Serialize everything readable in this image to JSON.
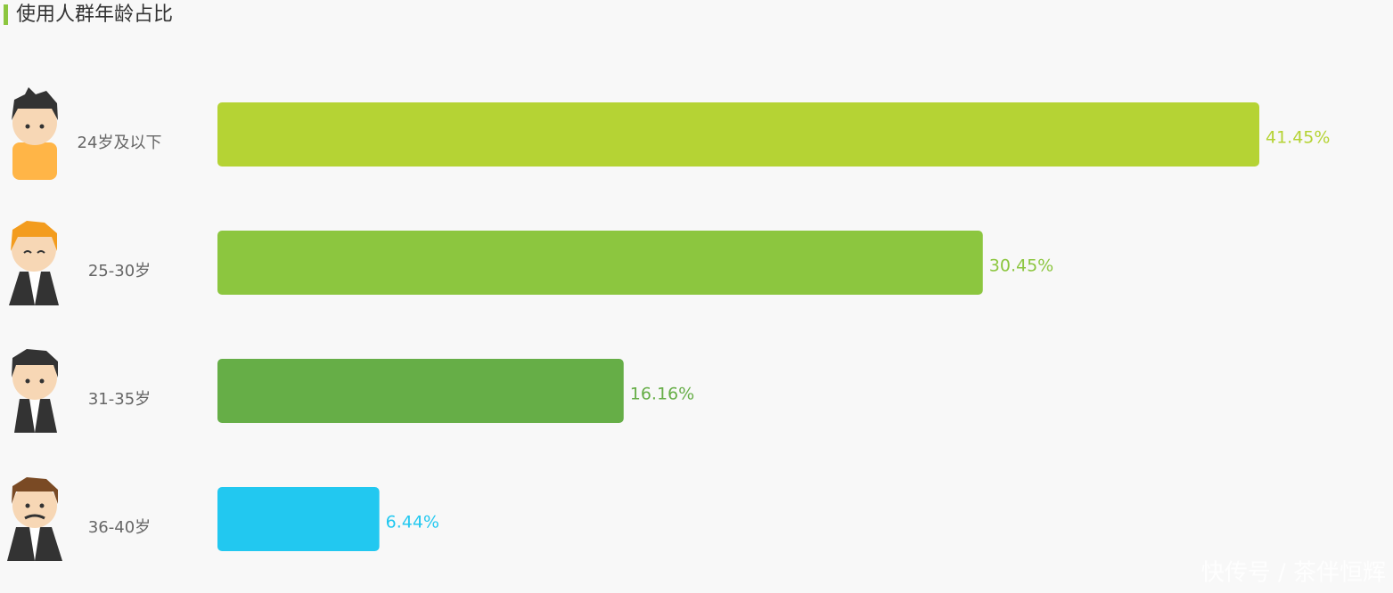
{
  "chart_data": {
    "type": "bar",
    "orientation": "horizontal",
    "title": "使用人群年龄占比",
    "categories": [
      "24岁及以下",
      "25-30岁",
      "31-35岁",
      "36-40岁"
    ],
    "values": [
      41.45,
      30.45,
      16.16,
      6.44
    ],
    "value_labels": [
      "41.45%",
      "30.45%",
      "16.16%",
      "6.44%"
    ],
    "colors": [
      "#b5d334",
      "#8cc63f",
      "#66ae47",
      "#22c8f0"
    ],
    "watermark": "快传号 / 茶伴恒辉"
  }
}
